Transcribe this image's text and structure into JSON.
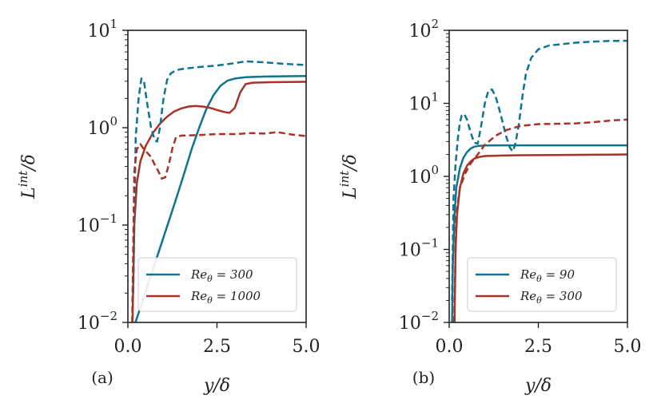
{
  "chart_data": [
    {
      "panel_label": "(a)",
      "type": "line",
      "yscale": "log",
      "xlabel": "y/δ",
      "ylabel_main": "L",
      "ylabel_sup": "int",
      "ylabel_tail": "/δ",
      "xlim": [
        0,
        5
      ],
      "ylim": [
        0.01,
        10
      ],
      "xticks": [
        0,
        2.5,
        5
      ],
      "xtick_labels": [
        "0.0",
        "2.5",
        "5.0"
      ],
      "yticks": [
        0.01,
        0.1,
        1,
        10
      ],
      "ytick_exponents": [
        "−2",
        "−1",
        "0",
        "1"
      ],
      "ytick_base": "10",
      "legend_position": "lower-right",
      "series": [
        {
          "name": "Re_θ = 300",
          "legend_main": "Re",
          "legend_sub": "θ",
          "legend_value": " = 300",
          "color": "#0e7490",
          "style": "solid",
          "in_legend": true,
          "x": [
            0.21,
            0.4,
            0.6,
            0.8,
            1.0,
            1.2,
            1.4,
            1.6,
            1.8,
            2.0,
            2.2,
            2.4,
            2.6,
            2.8,
            3.0,
            3.3,
            3.6,
            4.0,
            4.5,
            5.0
          ],
          "y": [
            0.01,
            0.016,
            0.027,
            0.045,
            0.075,
            0.125,
            0.21,
            0.36,
            0.62,
            1.0,
            1.55,
            2.15,
            2.7,
            3.05,
            3.2,
            3.3,
            3.33,
            3.36,
            3.38,
            3.4
          ]
        },
        {
          "name": "Re_θ = 1000",
          "legend_main": "Re",
          "legend_sub": "θ",
          "legend_value": " = 1000",
          "color": "#a93226",
          "style": "solid",
          "in_legend": true,
          "x": [
            0.13,
            0.18,
            0.25,
            0.35,
            0.5,
            0.7,
            0.9,
            1.1,
            1.3,
            1.5,
            1.7,
            1.9,
            2.1,
            2.3,
            2.5,
            2.7,
            2.85,
            3.0,
            3.15,
            3.3,
            3.5,
            4.0,
            4.5,
            5.0
          ],
          "y": [
            0.01,
            0.1,
            0.27,
            0.45,
            0.65,
            0.88,
            1.1,
            1.3,
            1.47,
            1.58,
            1.65,
            1.67,
            1.65,
            1.6,
            1.52,
            1.45,
            1.42,
            1.6,
            2.3,
            2.8,
            2.9,
            2.93,
            2.95,
            2.96
          ]
        },
        {
          "name": "Re_θ = 300 (dashed)",
          "color": "#0e7490",
          "style": "dashed",
          "in_legend": false,
          "x": [
            0.15,
            0.22,
            0.3,
            0.38,
            0.45,
            0.55,
            0.65,
            0.75,
            0.82,
            0.9,
            1.0,
            1.1,
            1.2,
            1.35,
            1.6,
            2.0,
            2.5,
            3.0,
            3.3,
            3.8,
            4.3,
            5.0
          ],
          "y": [
            0.02,
            0.8,
            2.0,
            3.2,
            3.0,
            1.7,
            1.0,
            0.75,
            0.72,
            1.0,
            2.0,
            3.1,
            3.6,
            3.9,
            4.05,
            4.2,
            4.35,
            4.6,
            4.8,
            4.7,
            4.55,
            4.4
          ]
        },
        {
          "name": "Re_θ = 1000 (dashed)",
          "color": "#a93226",
          "style": "dashed",
          "in_legend": false,
          "x": [
            0.12,
            0.18,
            0.25,
            0.35,
            0.45,
            0.55,
            0.65,
            0.75,
            0.85,
            0.95,
            1.05,
            1.15,
            1.25,
            1.35,
            1.5,
            2.0,
            2.5,
            3.0,
            3.5,
            3.8,
            4.2,
            4.6,
            5.0
          ],
          "y": [
            0.01,
            0.35,
            0.6,
            0.68,
            0.6,
            0.55,
            0.5,
            0.42,
            0.36,
            0.3,
            0.31,
            0.42,
            0.62,
            0.8,
            0.83,
            0.84,
            0.86,
            0.86,
            0.88,
            0.87,
            0.9,
            0.85,
            0.82
          ]
        }
      ]
    },
    {
      "panel_label": "(b)",
      "type": "line",
      "yscale": "log",
      "xlabel": "y/δ",
      "ylabel_main": "L",
      "ylabel_sup": "int",
      "ylabel_tail": "/δ",
      "xlim": [
        0,
        5
      ],
      "ylim": [
        0.01,
        100
      ],
      "xticks": [
        0,
        2.5,
        5
      ],
      "xtick_labels": [
        "0.0",
        "2.5",
        "5.0"
      ],
      "yticks": [
        0.01,
        0.1,
        1,
        10,
        100
      ],
      "ytick_exponents": [
        "−2",
        "−1",
        "0",
        "1",
        "2"
      ],
      "ytick_base": "10",
      "legend_position": "lower-right",
      "series": [
        {
          "name": "Re_θ = 90",
          "legend_main": "Re",
          "legend_sub": "θ",
          "legend_value": " = 90",
          "color": "#0e7490",
          "style": "solid",
          "in_legend": true,
          "x": [
            0.08,
            0.1,
            0.15,
            0.2,
            0.3,
            0.4,
            0.5,
            0.6,
            0.7,
            0.85,
            1.0,
            1.5,
            2.0,
            3.0,
            4.0,
            5.0
          ],
          "y": [
            0.01,
            0.06,
            0.3,
            0.7,
            1.3,
            1.8,
            2.15,
            2.4,
            2.55,
            2.62,
            2.65,
            2.66,
            2.66,
            2.66,
            2.66,
            2.66
          ]
        },
        {
          "name": "Re_θ = 300",
          "legend_main": "Re",
          "legend_sub": "θ",
          "legend_value": " = 300",
          "color": "#a93226",
          "style": "solid",
          "in_legend": true,
          "x": [
            0.15,
            0.18,
            0.22,
            0.3,
            0.4,
            0.5,
            0.6,
            0.7,
            0.85,
            1.0,
            1.5,
            2.0,
            3.0,
            4.0,
            5.0
          ],
          "y": [
            0.01,
            0.1,
            0.3,
            0.7,
            1.1,
            1.4,
            1.6,
            1.75,
            1.85,
            1.9,
            1.93,
            1.95,
            1.96,
            1.98,
            2.0
          ]
        },
        {
          "name": "Re_θ = 90 (dashed)",
          "color": "#0e7490",
          "style": "dashed",
          "in_legend": false,
          "x": [
            0.08,
            0.12,
            0.18,
            0.25,
            0.3,
            0.35,
            0.42,
            0.5,
            0.6,
            0.7,
            0.8,
            0.9,
            1.0,
            1.1,
            1.2,
            1.3,
            1.4,
            1.5,
            1.6,
            1.7,
            1.78,
            1.85,
            1.95,
            2.05,
            2.15,
            2.3,
            2.5,
            2.8,
            3.2,
            3.6,
            4.0,
            4.5,
            5.0
          ],
          "y": [
            0.02,
            0.5,
            1.5,
            3.5,
            5.5,
            6.8,
            7.2,
            6.0,
            4.0,
            2.9,
            2.8,
            5.0,
            10.0,
            15.0,
            15.5,
            12.5,
            8.5,
            5.5,
            3.5,
            2.5,
            2.2,
            2.7,
            5.0,
            12.0,
            25.0,
            42.0,
            55.0,
            62.0,
            65.0,
            68.0,
            70.0,
            71.5,
            72.0
          ]
        },
        {
          "name": "Re_θ = 300 (dashed)",
          "color": "#a93226",
          "style": "dashed",
          "in_legend": false,
          "x": [
            0.14,
            0.2,
            0.3,
            0.45,
            0.6,
            0.8,
            1.0,
            1.3,
            1.6,
            2.0,
            2.5,
            3.0,
            3.5,
            4.0,
            4.5,
            5.0
          ],
          "y": [
            0.01,
            0.3,
            0.7,
            1.1,
            1.5,
            2.0,
            2.7,
            3.6,
            4.3,
            4.9,
            5.2,
            5.25,
            5.3,
            5.5,
            5.8,
            6.0
          ]
        }
      ]
    }
  ]
}
